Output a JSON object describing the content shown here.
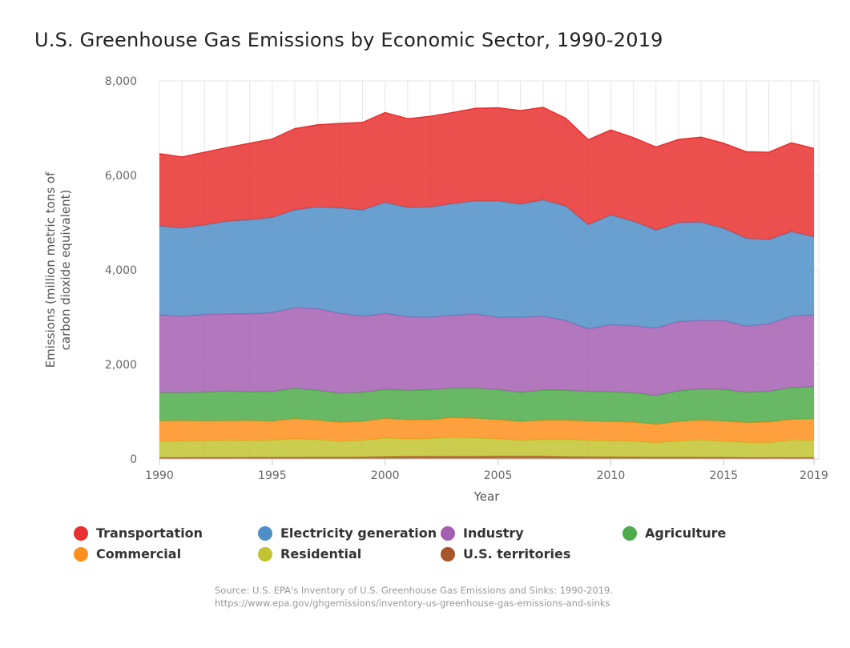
{
  "chart_data": {
    "type": "area",
    "stacked": true,
    "title": "U.S. Greenhouse Gas Emissions by Economic Sector, 1990-2019",
    "xlabel": "Year",
    "ylabel_lines": [
      "Emissions (million metric tons of",
      "carbon dioxide equivalent)"
    ],
    "x": [
      1990,
      1991,
      1992,
      1993,
      1994,
      1995,
      1996,
      1997,
      1998,
      1999,
      2000,
      2001,
      2002,
      2003,
      2004,
      2005,
      2006,
      2007,
      2008,
      2009,
      2010,
      2011,
      2012,
      2013,
      2014,
      2015,
      2016,
      2017,
      2018,
      2019
    ],
    "x_ticks": [
      1990,
      1995,
      2000,
      2005,
      2010,
      2015,
      2019
    ],
    "y_ticks": [
      0,
      2000,
      4000,
      6000,
      8000
    ],
    "y_tick_labels": [
      "0",
      "2,000",
      "4,000",
      "6,000",
      "8,000"
    ],
    "ylim": [
      0,
      8000
    ],
    "grid": true,
    "legend_position": "bottom",
    "series": [
      {
        "name": "U.S. territories",
        "color": "#a65628",
        "values": [
          30,
          30,
          31,
          32,
          33,
          34,
          35,
          38,
          38,
          40,
          50,
          55,
          58,
          58,
          58,
          60,
          60,
          60,
          48,
          45,
          42,
          40,
          38,
          38,
          37,
          35,
          30,
          30,
          30,
          30
        ]
      },
      {
        "name": "Residential",
        "color": "#c2c42f",
        "values": [
          345,
          352,
          357,
          365,
          358,
          365,
          390,
          370,
          340,
          357,
          390,
          370,
          375,
          400,
          385,
          365,
          335,
          350,
          365,
          350,
          345,
          340,
          305,
          345,
          365,
          345,
          320,
          315,
          370,
          365
        ]
      },
      {
        "name": "Commercial",
        "color": "#ff8f1c",
        "values": [
          430,
          430,
          415,
          410,
          420,
          400,
          430,
          415,
          395,
          395,
          420,
          405,
          400,
          420,
          415,
          410,
          395,
          410,
          410,
          405,
          405,
          400,
          390,
          410,
          420,
          420,
          420,
          435,
          440,
          455
        ]
      },
      {
        "name": "Agriculture",
        "color": "#4eab4a",
        "values": [
          600,
          590,
          610,
          630,
          610,
          630,
          640,
          630,
          620,
          620,
          610,
          620,
          630,
          620,
          640,
          630,
          620,
          640,
          630,
          630,
          630,
          620,
          610,
          650,
          660,
          670,
          640,
          650,
          670,
          680
        ]
      },
      {
        "name": "Industry",
        "color": "#a55fb2",
        "values": [
          1645,
          1618,
          1647,
          1633,
          1649,
          1671,
          1705,
          1727,
          1687,
          1608,
          1610,
          1560,
          1537,
          1542,
          1572,
          1535,
          1590,
          1560,
          1477,
          1325,
          1418,
          1420,
          1427,
          1467,
          1448,
          1460,
          1400,
          1430,
          1510,
          1520
        ]
      },
      {
        "name": "Electricity generation",
        "color": "#4f8fc7",
        "values": [
          1880,
          1870,
          1890,
          1960,
          1990,
          2010,
          2070,
          2150,
          2230,
          2250,
          2350,
          2310,
          2330,
          2360,
          2390,
          2460,
          2390,
          2460,
          2420,
          2200,
          2320,
          2210,
          2070,
          2090,
          2080,
          1950,
          1860,
          1780,
          1790,
          1650
        ]
      },
      {
        "name": "Transportation",
        "color": "#e8302f",
        "values": [
          1530,
          1500,
          1540,
          1560,
          1620,
          1660,
          1720,
          1740,
          1790,
          1850,
          1900,
          1880,
          1920,
          1930,
          1960,
          1970,
          1980,
          1960,
          1860,
          1800,
          1800,
          1770,
          1760,
          1760,
          1800,
          1800,
          1830,
          1850,
          1880,
          1870
        ]
      }
    ],
    "legend_order": [
      "Transportation",
      "Electricity generation",
      "Industry",
      "Agriculture",
      "Commercial",
      "Residential",
      "U.S. territories"
    ]
  },
  "source": {
    "line1": "Source: U.S. EPA's Inventory of U.S. Greenhouse Gas Emissions and Sinks: 1990-2019.",
    "line2": "https://www.epa.gov/ghgemissions/inventory-us-greenhouse-gas-emissions-and-sinks"
  }
}
